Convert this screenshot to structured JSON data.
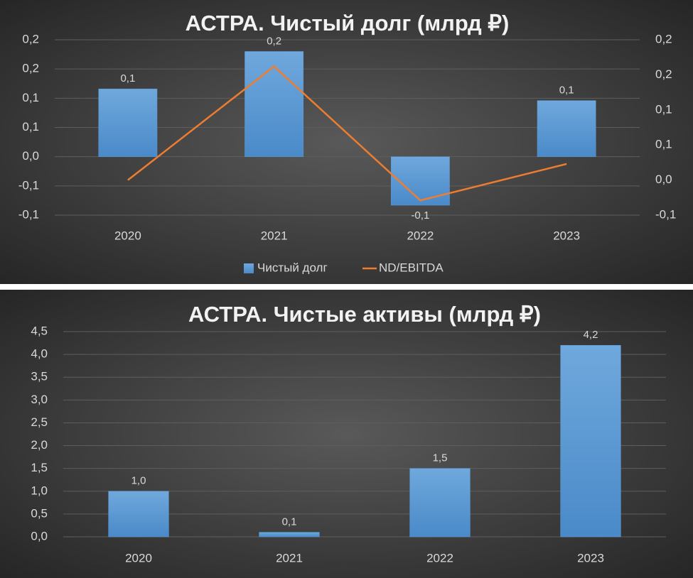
{
  "chart_data": [
    {
      "type": "bar",
      "title": "АСТРА. Чистый долг (млрд ₽)",
      "categories": [
        "2020",
        "2021",
        "2022",
        "2023"
      ],
      "series": [
        {
          "name": "Чистый долг",
          "type": "bar",
          "color": "#5b9bd5",
          "values": [
            0.116,
            0.18,
            -0.083,
            0.096
          ],
          "value_labels": [
            "0,1",
            "0,2",
            "-0,1",
            "0,1"
          ]
        },
        {
          "name": "ND/EBITDA",
          "type": "line",
          "axis": "y2",
          "color": "#ed7d31",
          "values": [
            0.0,
            0.162,
            -0.029,
            0.023
          ]
        }
      ],
      "ylim": [
        -0.1,
        0.2
      ],
      "yticks": [
        {
          "value": -0.1,
          "label": "-0,1"
        },
        {
          "value": -0.05,
          "label": "-0,1"
        },
        {
          "value": 0,
          "label": "0,0"
        },
        {
          "value": 0.05,
          "label": "0,1"
        },
        {
          "value": 0.1,
          "label": "0,1"
        },
        {
          "value": 0.15,
          "label": "0,2"
        },
        {
          "value": 0.2,
          "label": "0,2"
        }
      ],
      "y2lim": [
        -0.05,
        0.2
      ],
      "y2ticks": [
        {
          "value": -0.05,
          "label": "-0,1"
        },
        {
          "value": 0,
          "label": "0,0"
        },
        {
          "value": 0.05,
          "label": "0,1"
        },
        {
          "value": 0.1,
          "label": "0,1"
        },
        {
          "value": 0.15,
          "label": "0,2"
        },
        {
          "value": 0.2,
          "label": "0,2"
        }
      ],
      "grid": true,
      "legend": "bottom"
    },
    {
      "type": "bar",
      "title": "АСТРА. Чистые активы (млрд ₽)",
      "categories": [
        "2020",
        "2021",
        "2022",
        "2023"
      ],
      "series": [
        {
          "type": "bar",
          "color": "#5b9bd5",
          "values": [
            1.0,
            0.1,
            1.5,
            4.2
          ],
          "value_labels": [
            "1,0",
            "0,1",
            "1,5",
            "4,2"
          ]
        }
      ],
      "ylim": [
        0,
        4.5
      ],
      "yticks": [
        {
          "value": 0,
          "label": "0,0"
        },
        {
          "value": 0.5,
          "label": "0,5"
        },
        {
          "value": 1,
          "label": "1,0"
        },
        {
          "value": 1.5,
          "label": "1,5"
        },
        {
          "value": 2,
          "label": "2,0"
        },
        {
          "value": 2.5,
          "label": "2,5"
        },
        {
          "value": 3,
          "label": "3,0"
        },
        {
          "value": 3.5,
          "label": "3,5"
        },
        {
          "value": 4,
          "label": "4,0"
        },
        {
          "value": 4.5,
          "label": "4,5"
        }
      ],
      "grid": true
    }
  ]
}
